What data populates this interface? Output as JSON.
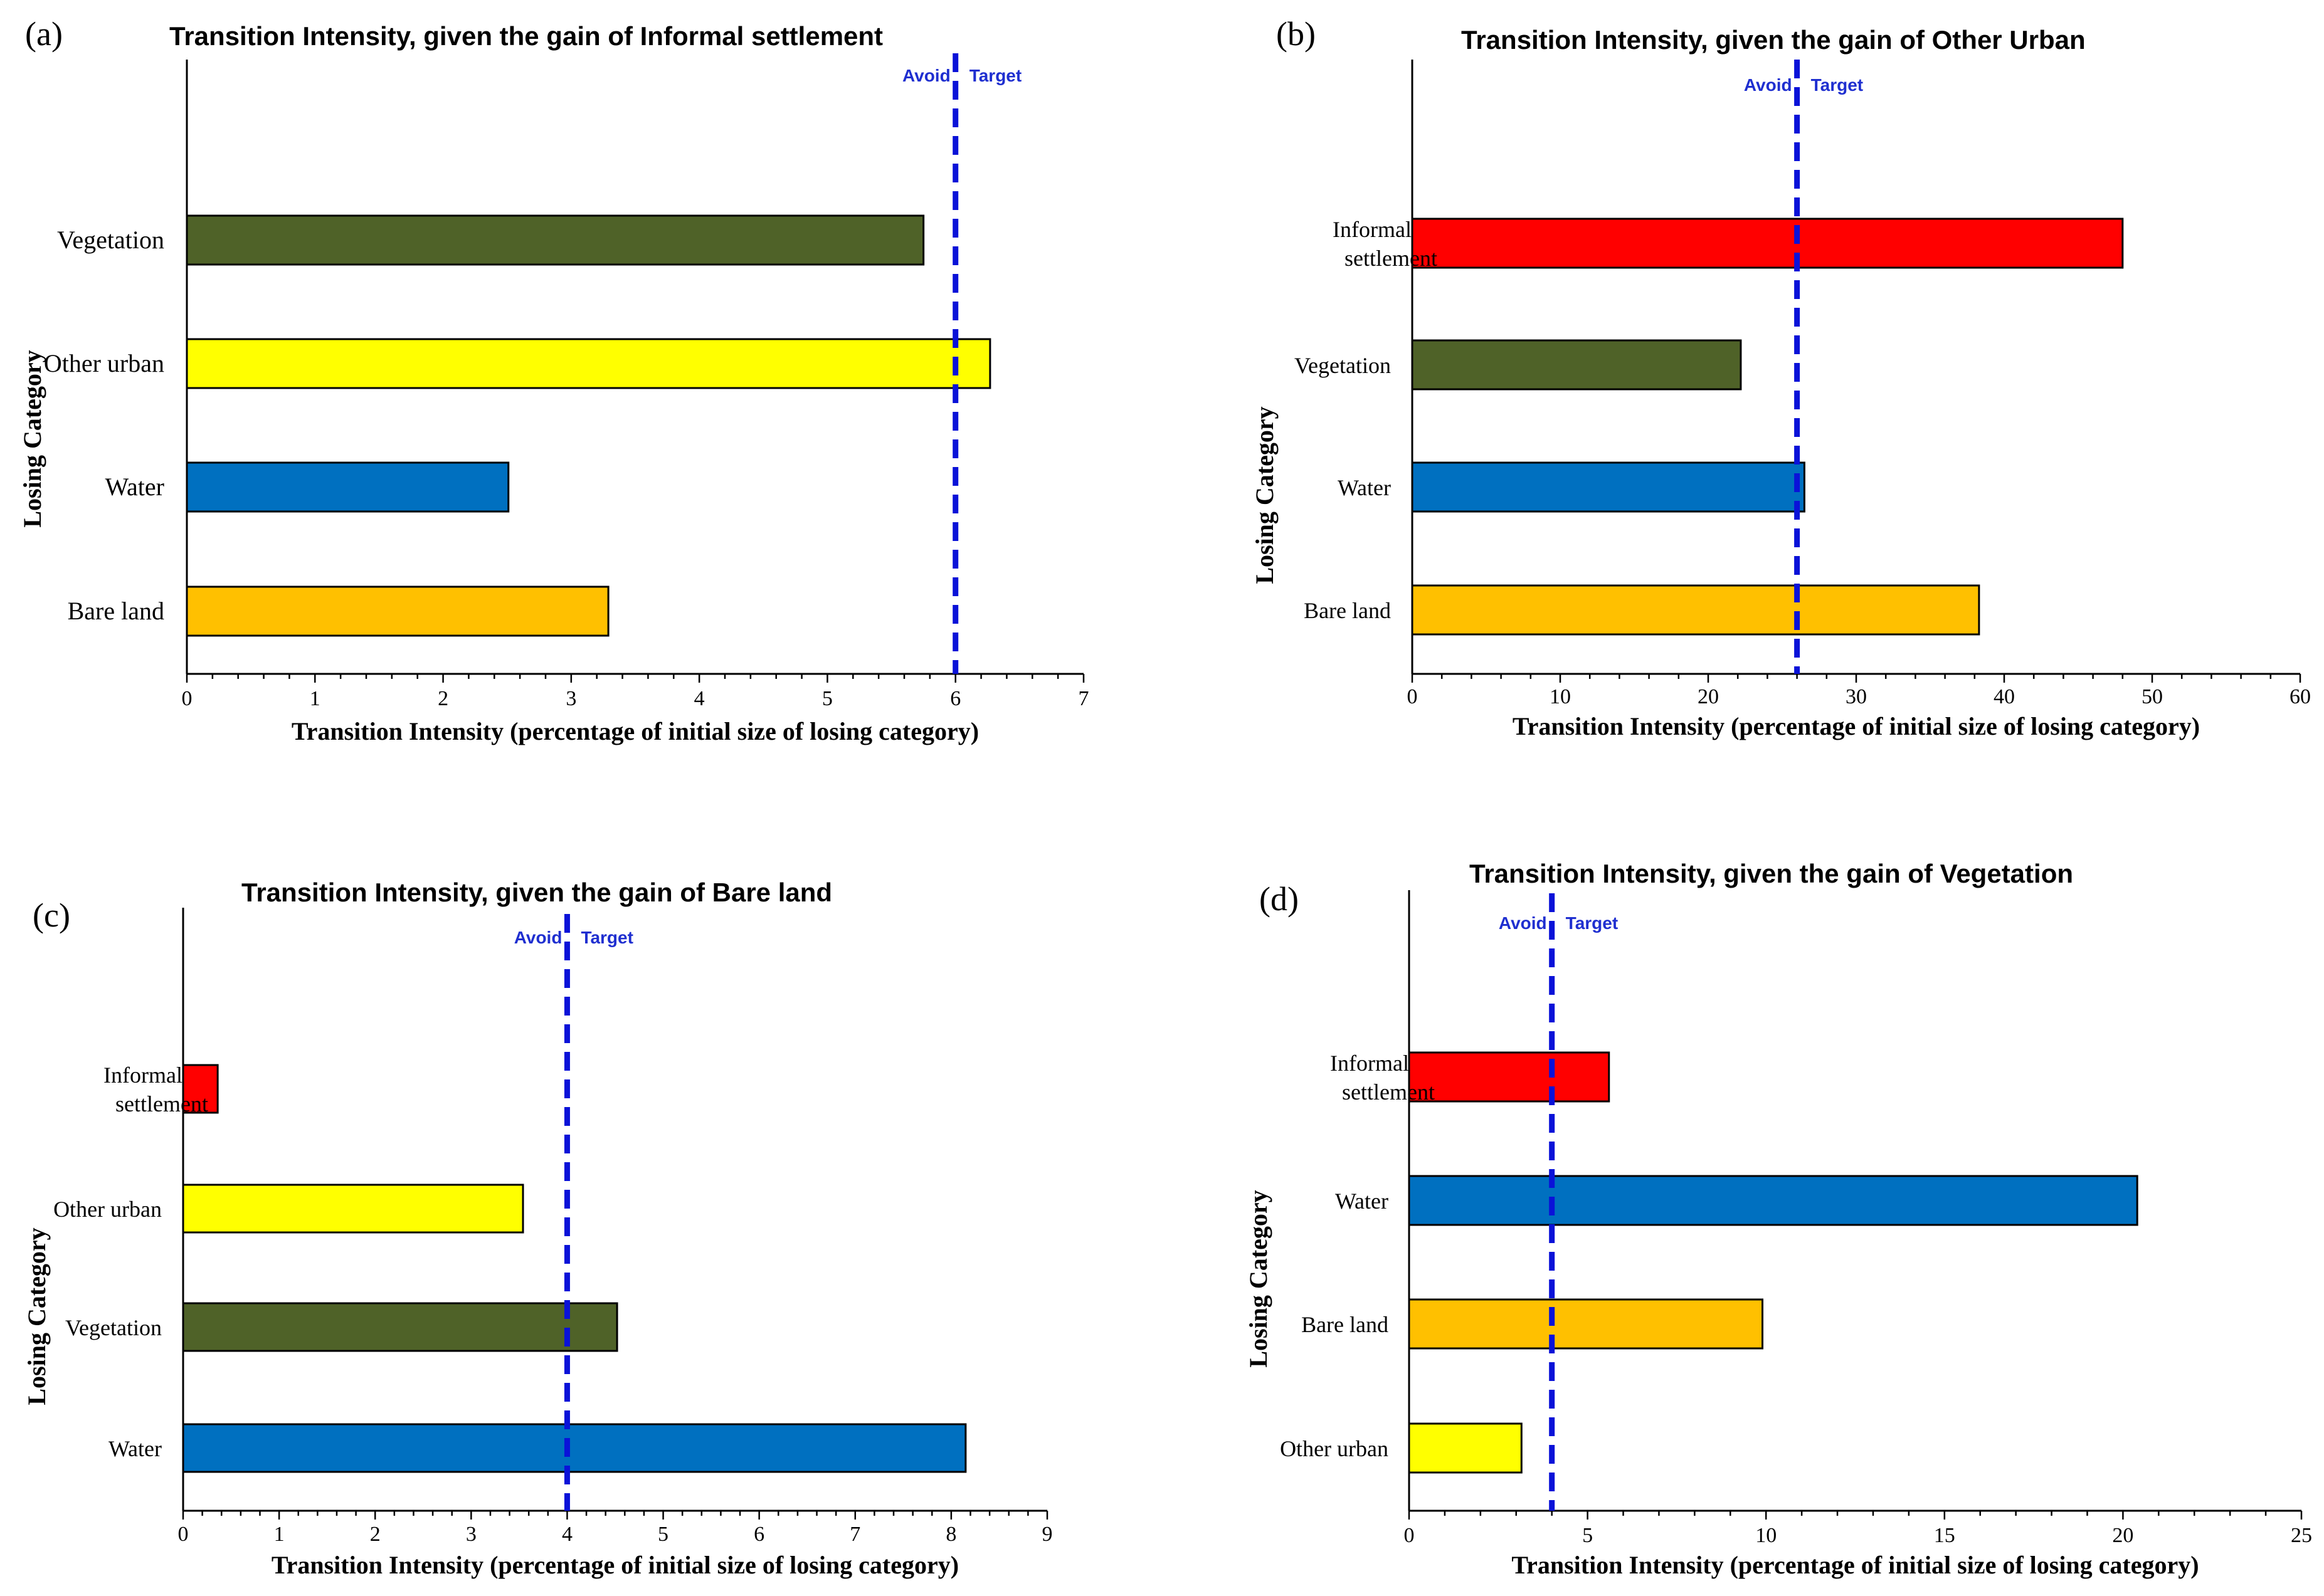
{
  "chart_data": [
    {
      "type": "bar",
      "orientation": "horizontal",
      "panel_label": "(a)",
      "title": "Transition Intensity, given the gain of Informal settlement",
      "xlabel": "Transition Intensity (percentage of initial size of losing category)",
      "ylabel": "Losing Category",
      "xlim": [
        0,
        7
      ],
      "xticks": [
        0,
        1,
        2,
        3,
        4,
        5,
        6,
        7
      ],
      "categories": [
        "Vegetation",
        "Other urban",
        "Water",
        "Bare land"
      ],
      "values": [
        5.75,
        6.27,
        2.51,
        3.29
      ],
      "colors": [
        "#4f6228",
        "#ffff00",
        "#0070c0",
        "#ffc000"
      ],
      "uniform_intensity": 6.0,
      "avoid_label": "Avoid",
      "target_label": "Target"
    },
    {
      "type": "bar",
      "orientation": "horizontal",
      "panel_label": "(b)",
      "title": "Transition Intensity, given the gain of Other Urban",
      "xlabel": "Transition Intensity (percentage of initial size of losing category)",
      "ylabel": "Losing Category",
      "xlim": [
        0,
        60
      ],
      "xticks": [
        0,
        10,
        20,
        30,
        40,
        50,
        60
      ],
      "categories": [
        "Informal settlement",
        "Vegetation",
        "Water",
        "Bare land"
      ],
      "values": [
        48,
        22.2,
        26.5,
        38.3
      ],
      "colors": [
        "#ff0000",
        "#4f6228",
        "#0070c0",
        "#ffc000"
      ],
      "uniform_intensity": 26.0,
      "avoid_label": "Avoid",
      "target_label": "Target"
    },
    {
      "type": "bar",
      "orientation": "horizontal",
      "panel_label": "(c)",
      "title": "Transition Intensity, given the gain of Bare land",
      "xlabel": "Transition Intensity (percentage of initial size of losing category)",
      "ylabel": "Losing Category",
      "xlim": [
        0,
        9
      ],
      "xticks": [
        0,
        1,
        2,
        3,
        4,
        5,
        6,
        7,
        8,
        9
      ],
      "categories": [
        "Informal settlement",
        "Other urban",
        "Vegetation",
        "Water"
      ],
      "values": [
        0.36,
        3.54,
        4.52,
        8.15
      ],
      "colors": [
        "#ff0000",
        "#ffff00",
        "#4f6228",
        "#0070c0"
      ],
      "uniform_intensity": 4.0,
      "avoid_label": "Avoid",
      "target_label": "Target"
    },
    {
      "type": "bar",
      "orientation": "horizontal",
      "panel_label": "(d)",
      "title": "Transition Intensity, given the gain of Vegetation",
      "xlabel": "Transition Intensity (percentage of initial size of losing category)",
      "ylabel": "Losing Category",
      "xlim": [
        0,
        25
      ],
      "xticks": [
        0,
        5,
        10,
        15,
        20,
        25
      ],
      "categories": [
        "Informal settlement",
        "Water",
        "Bare land",
        "Other urban"
      ],
      "values": [
        5.6,
        20.4,
        9.9,
        3.15
      ],
      "colors": [
        "#ff0000",
        "#0070c0",
        "#ffc000",
        "#ffff00"
      ],
      "uniform_intensity": 4.0,
      "avoid_label": "Avoid",
      "target_label": "Target"
    }
  ]
}
